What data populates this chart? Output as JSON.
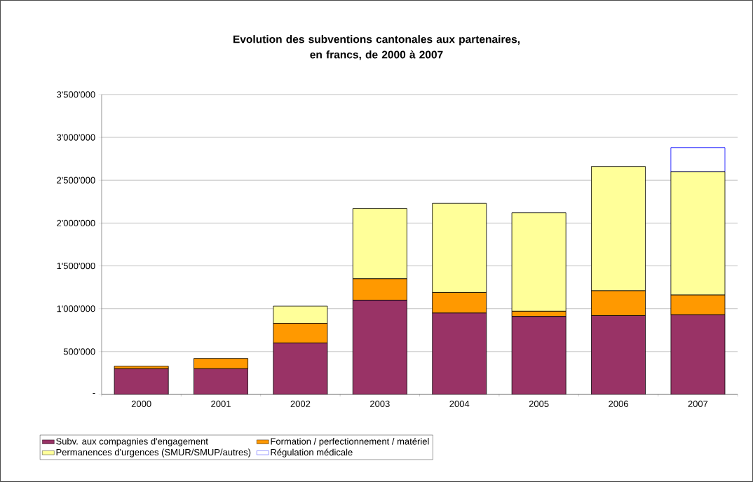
{
  "chart_data": {
    "type": "bar",
    "title": "Evolution des subventions cantonales aux partenaires,\nen francs, de 2000 à 2007",
    "categories": [
      "2000",
      "2001",
      "2002",
      "2003",
      "2004",
      "2005",
      "2006",
      "2007"
    ],
    "stacked": true,
    "series": [
      {
        "name": "Subv. aux compagnies d'engagement",
        "color": "#993366",
        "values": [
          300000,
          300000,
          600000,
          1100000,
          950000,
          910000,
          920000,
          930000
        ]
      },
      {
        "name": "Formation / perfectionnement / matériel",
        "color": "#ff9900",
        "values": [
          30000,
          120000,
          230000,
          250000,
          240000,
          60000,
          290000,
          230000
        ]
      },
      {
        "name": "Permanences d'urgences (SMUR/SMUP/autres)",
        "color": "#ffff99",
        "values": [
          null,
          null,
          200000,
          820000,
          1040000,
          1150000,
          1450000,
          1440000
        ]
      },
      {
        "name": "Régulation médicale",
        "color": "#0000ff",
        "values": [
          null,
          null,
          null,
          null,
          null,
          null,
          null,
          280000
        ]
      }
    ],
    "ylim": [
      0,
      3500000
    ],
    "yticks": [
      {
        "value": 0,
        "label": "-"
      },
      {
        "value": 500000,
        "label": "500'000"
      },
      {
        "value": 1000000,
        "label": "1'000'000"
      },
      {
        "value": 1500000,
        "label": "1'500'000"
      },
      {
        "value": 2000000,
        "label": "2'000'000"
      },
      {
        "value": 2500000,
        "label": "2'500'000"
      },
      {
        "value": 3000000,
        "label": "3'000'000"
      },
      {
        "value": 3500000,
        "label": "3'500'000"
      }
    ],
    "grid": "y",
    "legend": "bottom"
  }
}
